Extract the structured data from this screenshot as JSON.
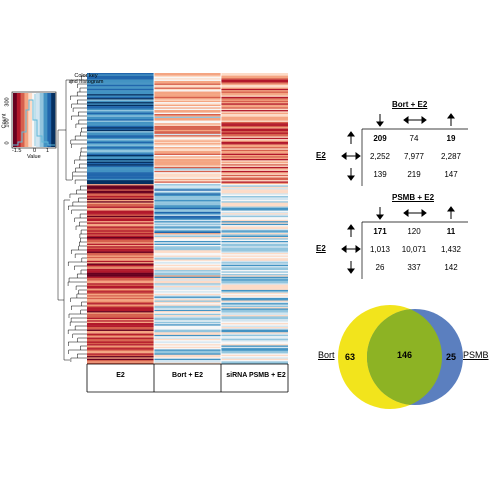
{
  "color_key": {
    "title_line1": "Color key",
    "title_line2": "and histogram",
    "y_axis_label": "Count",
    "y_ticks": [
      "0",
      "100",
      "300"
    ],
    "x_ticks": [
      "-1.5",
      "0",
      "1"
    ],
    "x_axis_label": "Value",
    "colors": [
      "#67001f",
      "#b2182b",
      "#d6604d",
      "#f4a582",
      "#fddbc7",
      "#f7f7f7",
      "#d1e5f0",
      "#92c5de",
      "#4393c3",
      "#2166ac",
      "#053061"
    ]
  },
  "heatmap": {
    "columns": [
      "E2",
      "Bort + E2",
      "siRNA PSMB + E2"
    ],
    "row_count": 220
  },
  "table_bort": {
    "title": "Bort + E2",
    "row_header": "E2",
    "col_arrows": [
      "down-arrow",
      "left-right-arrow",
      "up-arrow"
    ],
    "row_arrows": [
      "up-arrow",
      "left-right-arrow",
      "down-arrow"
    ],
    "rows": [
      [
        "209",
        "74",
        "19"
      ],
      [
        "2,252",
        "7,977",
        "2,287"
      ],
      [
        "139",
        "219",
        "147"
      ]
    ]
  },
  "table_psmb": {
    "title": "PSMB + E2",
    "row_header": "E2",
    "col_arrows": [
      "down-arrow",
      "left-right-arrow",
      "up-arrow"
    ],
    "row_arrows": [
      "up-arrow",
      "left-right-arrow",
      "down-arrow"
    ],
    "rows": [
      [
        "171",
        "120",
        "11"
      ],
      [
        "1,013",
        "10,071",
        "1,432"
      ],
      [
        "26",
        "337",
        "142"
      ]
    ]
  },
  "venn": {
    "left_label": "Bort",
    "right_label": "PSMB",
    "left_only": "63",
    "overlap": "146",
    "right_only": "25",
    "colors": {
      "left": "#f2e41c",
      "right": "#5b7fbf",
      "overlap": "#8db324"
    }
  }
}
